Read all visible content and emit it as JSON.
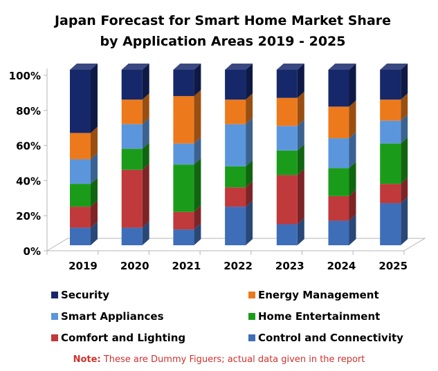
{
  "chart_data": {
    "type": "bar",
    "stacked": true,
    "percent_stacked": true,
    "title_line1": "Japan Forecast for Smart Home Market Share",
    "title_line2": "by Application Areas 2019 - 2025",
    "categories": [
      "2019",
      "2020",
      "2021",
      "2022",
      "2023",
      "2024",
      "2025"
    ],
    "y_ticks": [
      "0%",
      "20%",
      "40%",
      "60%",
      "80%",
      "100%"
    ],
    "ylim": [
      0,
      100
    ],
    "grid": false,
    "legend_position": "bottom",
    "series": [
      {
        "name": "Control and Connectivity",
        "color": "#3f6eb8",
        "values": [
          10,
          10,
          9,
          22,
          12,
          14,
          24
        ]
      },
      {
        "name": "Comfort and Lighting",
        "color": "#c0393b",
        "values": [
          12,
          33,
          10,
          11,
          28,
          14,
          11
        ]
      },
      {
        "name": "Home Entertainment",
        "color": "#1a9c1a",
        "values": [
          13,
          12,
          27,
          12,
          14,
          16,
          23
        ]
      },
      {
        "name": "Smart Appliances",
        "color": "#5b96dd",
        "values": [
          14,
          14,
          12,
          24,
          14,
          17,
          13
        ]
      },
      {
        "name": "Energy Management",
        "color": "#ec7a1c",
        "values": [
          15,
          14,
          27,
          14,
          16,
          18,
          12
        ]
      },
      {
        "name": "Security",
        "color": "#16286a",
        "values": [
          36,
          17,
          15,
          17,
          16,
          21,
          17
        ]
      }
    ],
    "legend_order": [
      "Security",
      "Energy Management",
      "Smart Appliances",
      "Home Entertainment",
      "Comfort and Lighting",
      "Control and Connectivity"
    ]
  },
  "note": {
    "label": "Note:",
    "text": " These are Dummy Figuers; actual data given in the report"
  }
}
